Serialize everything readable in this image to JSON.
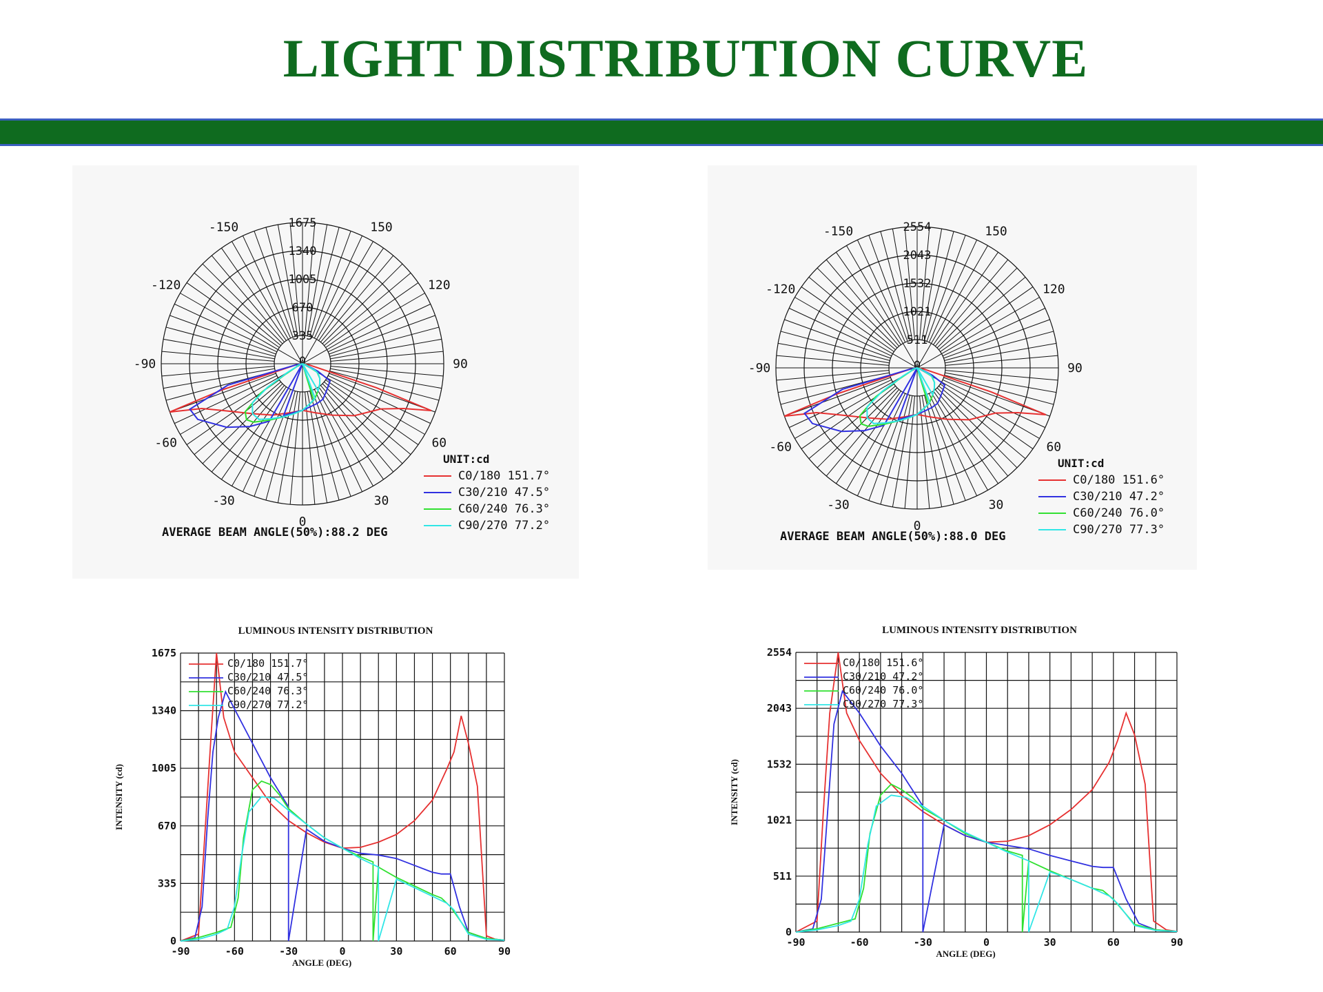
{
  "title": "LIGHT DISTRIBUTION CURVE",
  "colors": {
    "brand_green": "#0f6b1f",
    "band_border": "#3b5fbf",
    "series": [
      "#e63030",
      "#3030e0",
      "#30e030",
      "#30e6e6"
    ]
  },
  "chart_data": [
    {
      "type": "polar",
      "unit_label": "UNIT:cd",
      "radial_ticks": [
        "335",
        "670",
        "1005",
        "1340",
        "1675"
      ],
      "angle_labels": [
        "-150",
        "150",
        "-120",
        "120",
        "-90",
        "90",
        "-60",
        "60",
        "-30",
        "30",
        "0",
        "0"
      ],
      "rmax": 1675,
      "footer": "AVERAGE BEAM ANGLE(50%):88.2 DEG",
      "series": [
        {
          "name": "C0/180 151.7°",
          "color": "#e63030"
        },
        {
          "name": "C30/210 47.5°",
          "color": "#3030e0"
        },
        {
          "name": "C60/240 76.3°",
          "color": "#30e030"
        },
        {
          "name": "C90/270 77.2°",
          "color": "#30e6e6"
        }
      ]
    },
    {
      "type": "polar",
      "unit_label": "UNIT:cd",
      "radial_ticks": [
        "511",
        "1021",
        "1532",
        "2043",
        "2554"
      ],
      "angle_labels": [
        "-150",
        "150",
        "-120",
        "120",
        "-90",
        "90",
        "-60",
        "60",
        "-30",
        "30",
        "0",
        "0"
      ],
      "rmax": 2554,
      "footer": "AVERAGE BEAM ANGLE(50%):88.0 DEG",
      "series": [
        {
          "name": "C0/180 151.6°",
          "color": "#e63030"
        },
        {
          "name": "C30/210 47.2°",
          "color": "#3030e0"
        },
        {
          "name": "C60/240 76.0°",
          "color": "#30e030"
        },
        {
          "name": "C90/270 77.3°",
          "color": "#30e6e6"
        }
      ]
    },
    {
      "type": "line",
      "title": "LUMINOUS INTENSITY DISTRIBUTION",
      "xlabel": "ANGLE (DEG)",
      "ylabel": "INTENSITY (cd)",
      "xlim": [
        -90,
        90
      ],
      "ylim": [
        0,
        1675
      ],
      "xticks": [
        "-90",
        "-60",
        "-30",
        "0",
        "30",
        "60",
        "90"
      ],
      "yticks": [
        "0",
        "335",
        "670",
        "1005",
        "1340",
        "1675"
      ],
      "series": [
        {
          "name": "C0/180 151.7°",
          "color": "#e63030",
          "points": [
            [
              -90,
              0
            ],
            [
              -80,
              40
            ],
            [
              -76,
              700
            ],
            [
              -73,
              1200
            ],
            [
              -70,
              1675
            ],
            [
              -66,
              1300
            ],
            [
              -60,
              1100
            ],
            [
              -50,
              950
            ],
            [
              -40,
              800
            ],
            [
              -30,
              700
            ],
            [
              -20,
              630
            ],
            [
              -10,
              575
            ],
            [
              0,
              540
            ],
            [
              10,
              545
            ],
            [
              20,
              575
            ],
            [
              30,
              620
            ],
            [
              40,
              700
            ],
            [
              50,
              820
            ],
            [
              58,
              1000
            ],
            [
              62,
              1100
            ],
            [
              66,
              1310
            ],
            [
              70,
              1150
            ],
            [
              75,
              900
            ],
            [
              80,
              30
            ],
            [
              85,
              10
            ],
            [
              90,
              5
            ]
          ]
        },
        {
          "name": "C30/210 47.5°",
          "color": "#3030e0",
          "points": [
            [
              -90,
              0
            ],
            [
              -82,
              20
            ],
            [
              -78,
              200
            ],
            [
              -75,
              700
            ],
            [
              -72,
              1100
            ],
            [
              -69,
              1300
            ],
            [
              -65,
              1450
            ],
            [
              -60,
              1350
            ],
            [
              -50,
              1150
            ],
            [
              -40,
              950
            ],
            [
              -30,
              780
            ],
            [
              -30,
              0
            ],
            [
              -20,
              650
            ],
            [
              -10,
              580
            ],
            [
              0,
              540
            ],
            [
              10,
              510
            ],
            [
              20,
              500
            ],
            [
              30,
              480
            ],
            [
              40,
              440
            ],
            [
              50,
              400
            ],
            [
              55,
              390
            ],
            [
              60,
              390
            ],
            [
              65,
              200
            ],
            [
              70,
              50
            ],
            [
              80,
              15
            ],
            [
              90,
              5
            ]
          ]
        },
        {
          "name": "C60/240 76.3°",
          "color": "#30e030",
          "points": [
            [
              -90,
              0
            ],
            [
              -80,
              20
            ],
            [
              -70,
              50
            ],
            [
              -62,
              80
            ],
            [
              -58,
              250
            ],
            [
              -55,
              600
            ],
            [
              -50,
              880
            ],
            [
              -45,
              930
            ],
            [
              -40,
              910
            ],
            [
              -35,
              850
            ],
            [
              -30,
              770
            ],
            [
              -20,
              680
            ],
            [
              -10,
              600
            ],
            [
              0,
              540
            ],
            [
              10,
              490
            ],
            [
              17,
              460
            ],
            [
              17,
              0
            ],
            [
              20,
              430
            ],
            [
              30,
              370
            ],
            [
              40,
              320
            ],
            [
              50,
              270
            ],
            [
              55,
              250
            ],
            [
              60,
              200
            ],
            [
              70,
              50
            ],
            [
              80,
              15
            ],
            [
              90,
              5
            ]
          ]
        },
        {
          "name": "C90/270 77.2°",
          "color": "#30e6e6",
          "points": [
            [
              -90,
              0
            ],
            [
              -80,
              10
            ],
            [
              -70,
              40
            ],
            [
              -64,
              70
            ],
            [
              -60,
              200
            ],
            [
              -56,
              500
            ],
            [
              -52,
              750
            ],
            [
              -45,
              840
            ],
            [
              -38,
              830
            ],
            [
              -30,
              760
            ],
            [
              -20,
              680
            ],
            [
              -10,
              600
            ],
            [
              0,
              540
            ],
            [
              10,
              480
            ],
            [
              20,
              430
            ],
            [
              20,
              0
            ],
            [
              30,
              360
            ],
            [
              40,
              310
            ],
            [
              50,
              260
            ],
            [
              58,
              220
            ],
            [
              62,
              180
            ],
            [
              70,
              40
            ],
            [
              80,
              10
            ],
            [
              90,
              5
            ]
          ]
        }
      ]
    },
    {
      "type": "line",
      "title": "LUMINOUS INTENSITY DISTRIBUTION",
      "xlabel": "ANGLE (DEG)",
      "ylabel": "INTENSITY (cd)",
      "xlim": [
        -90,
        90
      ],
      "ylim": [
        0,
        2554
      ],
      "xticks": [
        "-90",
        "-60",
        "-30",
        "0",
        "30",
        "60",
        "90"
      ],
      "yticks": [
        "0",
        "511",
        "1021",
        "1532",
        "2043",
        "2554"
      ],
      "series": [
        {
          "name": "C0/180 151.6°",
          "color": "#e63030",
          "points": [
            [
              -90,
              0
            ],
            [
              -80,
              100
            ],
            [
              -77,
              1100
            ],
            [
              -74,
              2000
            ],
            [
              -70,
              2554
            ],
            [
              -66,
              2000
            ],
            [
              -60,
              1750
            ],
            [
              -50,
              1450
            ],
            [
              -40,
              1250
            ],
            [
              -30,
              1100
            ],
            [
              -20,
              980
            ],
            [
              -10,
              880
            ],
            [
              0,
              820
            ],
            [
              10,
              830
            ],
            [
              20,
              880
            ],
            [
              30,
              980
            ],
            [
              40,
              1120
            ],
            [
              50,
              1300
            ],
            [
              58,
              1550
            ],
            [
              62,
              1750
            ],
            [
              66,
              2000
            ],
            [
              70,
              1800
            ],
            [
              75,
              1350
            ],
            [
              79,
              100
            ],
            [
              85,
              20
            ],
            [
              90,
              5
            ]
          ]
        },
        {
          "name": "C30/210 47.2°",
          "color": "#3030e0",
          "points": [
            [
              -90,
              0
            ],
            [
              -82,
              30
            ],
            [
              -78,
              300
            ],
            [
              -75,
              1100
            ],
            [
              -72,
              1900
            ],
            [
              -68,
              2200
            ],
            [
              -60,
              2000
            ],
            [
              -50,
              1700
            ],
            [
              -40,
              1450
            ],
            [
              -30,
              1150
            ],
            [
              -30,
              0
            ],
            [
              -20,
              980
            ],
            [
              -10,
              880
            ],
            [
              0,
              820
            ],
            [
              10,
              790
            ],
            [
              20,
              760
            ],
            [
              30,
              700
            ],
            [
              40,
              650
            ],
            [
              50,
              600
            ],
            [
              55,
              590
            ],
            [
              60,
              590
            ],
            [
              66,
              300
            ],
            [
              72,
              80
            ],
            [
              80,
              20
            ],
            [
              90,
              5
            ]
          ]
        },
        {
          "name": "C60/240 76.0°",
          "color": "#30e030",
          "points": [
            [
              -90,
              0
            ],
            [
              -80,
              30
            ],
            [
              -70,
              80
            ],
            [
              -62,
              120
            ],
            [
              -58,
              400
            ],
            [
              -55,
              900
            ],
            [
              -50,
              1250
            ],
            [
              -45,
              1350
            ],
            [
              -40,
              1300
            ],
            [
              -35,
              1230
            ],
            [
              -30,
              1130
            ],
            [
              -20,
              1020
            ],
            [
              -10,
              900
            ],
            [
              0,
              820
            ],
            [
              10,
              740
            ],
            [
              17,
              700
            ],
            [
              17,
              0
            ],
            [
              20,
              650
            ],
            [
              30,
              560
            ],
            [
              40,
              480
            ],
            [
              50,
              400
            ],
            [
              55,
              380
            ],
            [
              60,
              300
            ],
            [
              70,
              70
            ],
            [
              80,
              20
            ],
            [
              90,
              5
            ]
          ]
        },
        {
          "name": "C90/270 77.3°",
          "color": "#30e6e6",
          "points": [
            [
              -90,
              0
            ],
            [
              -80,
              20
            ],
            [
              -70,
              60
            ],
            [
              -64,
              100
            ],
            [
              -60,
              300
            ],
            [
              -56,
              800
            ],
            [
              -52,
              1150
            ],
            [
              -45,
              1250
            ],
            [
              -38,
              1230
            ],
            [
              -30,
              1150
            ],
            [
              -20,
              1020
            ],
            [
              -10,
              910
            ],
            [
              0,
              820
            ],
            [
              10,
              730
            ],
            [
              20,
              650
            ],
            [
              20,
              0
            ],
            [
              30,
              550
            ],
            [
              40,
              480
            ],
            [
              50,
              400
            ],
            [
              58,
              330
            ],
            [
              62,
              260
            ],
            [
              70,
              60
            ],
            [
              80,
              15
            ],
            [
              90,
              5
            ]
          ]
        }
      ]
    }
  ]
}
